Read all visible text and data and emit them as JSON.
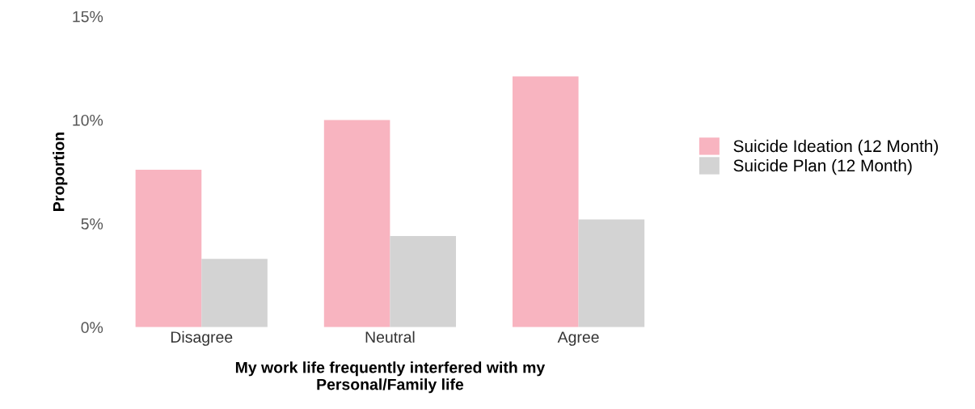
{
  "chart_data": {
    "type": "bar",
    "xlabel": "My work life frequently interfered with my\nPersonal/Family life",
    "ylabel": "Proportion",
    "categories": [
      "Disagree",
      "Neutral",
      "Agree"
    ],
    "series": [
      {
        "name": "Suicide Ideation (12 Month)",
        "color": "#f8b4c0",
        "values": [
          7.6,
          10.0,
          12.1
        ]
      },
      {
        "name": "Suicide Plan (12 Month)",
        "color": "#d3d3d3",
        "values": [
          3.3,
          4.4,
          5.2
        ]
      }
    ],
    "ylim": [
      0,
      15
    ],
    "yticks": [
      {
        "value": 0,
        "label": "0%"
      },
      {
        "value": 5,
        "label": "5%"
      },
      {
        "value": 10,
        "label": "10%"
      },
      {
        "value": 15,
        "label": "15%"
      }
    ],
    "grid": false,
    "legend": "right"
  }
}
